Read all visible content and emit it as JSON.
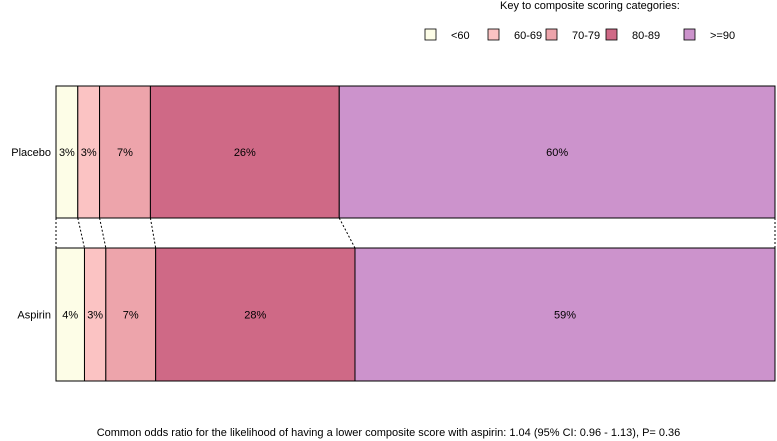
{
  "chart_data": {
    "type": "bar",
    "orientation": "horizontal",
    "stacked": true,
    "normalized_percent": true,
    "categories": [
      "Placebo",
      "Aspirin"
    ],
    "series": [
      {
        "name": "<60",
        "values": [
          3,
          4
        ],
        "labels": [
          "3%",
          "4%"
        ],
        "color": "#fdfde7"
      },
      {
        "name": "60-69",
        "values": [
          3,
          3
        ],
        "labels": [
          "3%",
          "3%"
        ],
        "color": "#fbc3c3"
      },
      {
        "name": "70-79",
        "values": [
          7,
          7
        ],
        "labels": [
          "7%",
          "7%"
        ],
        "color": "#eda4ab"
      },
      {
        "name": "80-89",
        "values": [
          26,
          28
        ],
        "labels": [
          "26%",
          "28%"
        ],
        "color": "#cf6986"
      },
      {
        "name": ">=90",
        "values": [
          60,
          59
        ],
        "labels": [
          "60%",
          "59%"
        ],
        "color": "#cc93cc"
      }
    ],
    "xlim": [
      0,
      100
    ],
    "legend": {
      "title": "Key to composite scoring categories:",
      "placement": "top-right"
    },
    "connectors": "dotted lines between stacked segment boundaries",
    "footnote": "Common odds ratio for the likelihood of having a lower composite score with aspirin: 1.04 (95% CI: 0.96 - 1.13), P= 0.36"
  }
}
